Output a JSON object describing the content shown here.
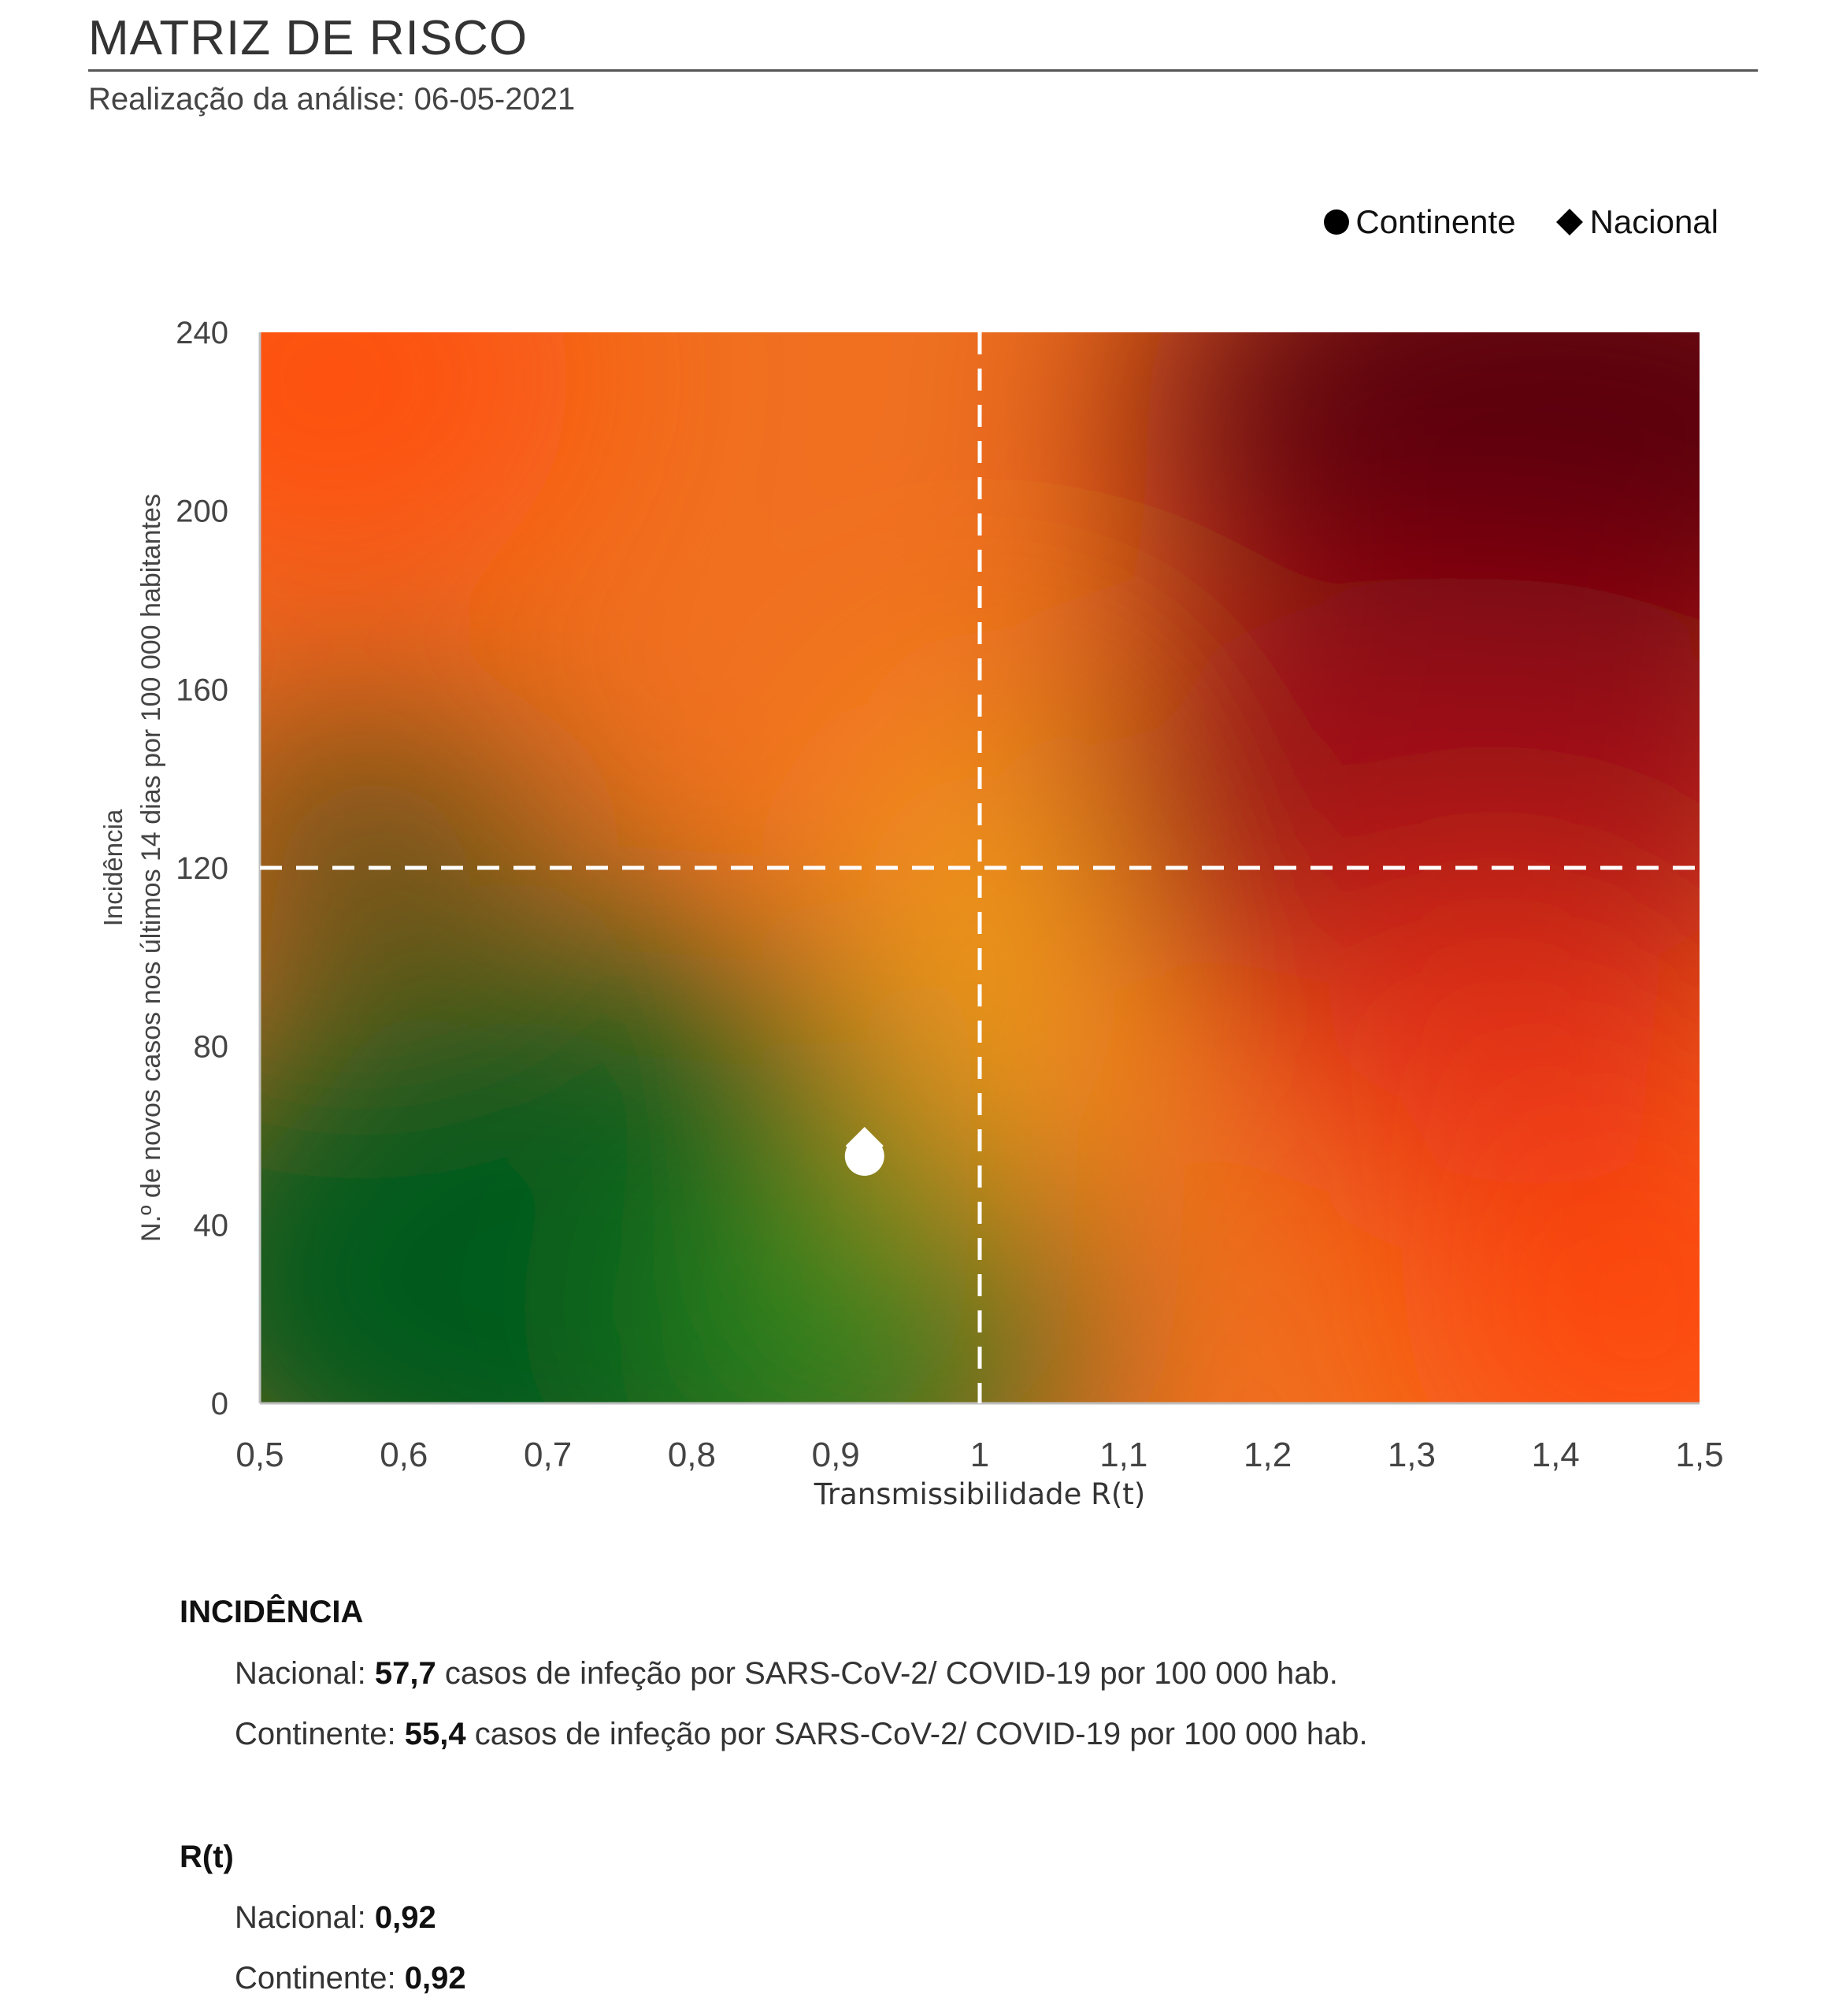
{
  "header": {
    "title": "MATRIZ DE RISCO",
    "subtitle": "Realização da análise: 06-05-2021"
  },
  "legend": {
    "continente": "Continente",
    "nacional": "Nacional"
  },
  "colors": {
    "green": "#015a1f",
    "orange": "#f5a01a",
    "red_orange": "#ff4a0e",
    "dark_red": "#5a000f",
    "guide_lines": "#ffffff",
    "markers": "#ffffff"
  },
  "chart_data": {
    "type": "scatter",
    "background": "risk gradient (green low-left, orange center, dark red upper-right)",
    "xlabel": "Transmissibilidade R(t)",
    "ylabel_line1": "Incidência",
    "ylabel_line2": "N.º de novos casos nos últimos 14 dias por 100 000 habitantes",
    "xlim": [
      0.5,
      1.5
    ],
    "ylim": [
      0,
      240
    ],
    "x_ticks": [
      "0,5",
      "0,6",
      "0,7",
      "0,8",
      "0,9",
      "1",
      "1,1",
      "1,2",
      "1,3",
      "1,4",
      "1,5"
    ],
    "y_ticks": [
      "0",
      "40",
      "80",
      "120",
      "160",
      "200",
      "240"
    ],
    "thresholds": {
      "x": 1,
      "y": 120
    },
    "series": [
      {
        "name": "Continente",
        "marker": "circle",
        "x": 0.92,
        "y": 55.4
      },
      {
        "name": "Nacional",
        "marker": "diamond",
        "x": 0.92,
        "y": 57.7
      }
    ]
  },
  "incidencia": {
    "heading": "INCIDÊNCIA",
    "nacional_label": "Nacional:",
    "nacional_value": "57,7",
    "nacional_text": "casos de infeção por SARS-CoV-2/ COVID-19 por 100 000 hab.",
    "continente_label": "Continente:",
    "continente_value": "55,4",
    "continente_text": "casos de infeção por SARS-CoV-2/ COVID-19 por 100 000 hab."
  },
  "rt": {
    "heading": "R(t)",
    "nacional_label": "Nacional:",
    "nacional_value": "0,92",
    "continente_label": "Continente:",
    "continente_value": "0,92"
  }
}
